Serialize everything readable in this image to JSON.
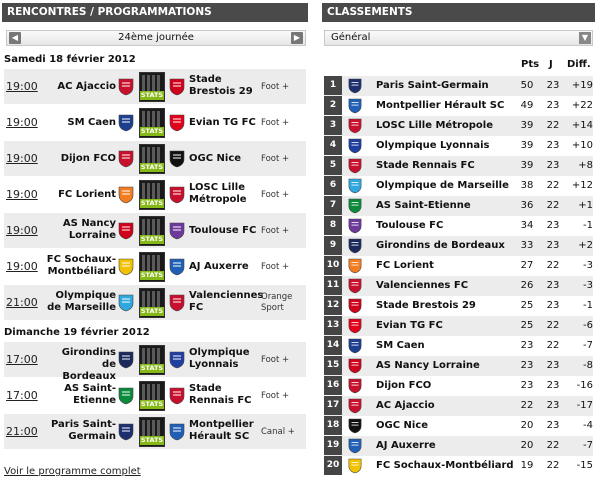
{
  "left": {
    "header": "RENCONTRES / PROGRAMMATIONS",
    "round": "24ème journée",
    "prev_icon": "chevron-left-icon",
    "next_icon": "chevron-right-icon",
    "stats_label": "STATS",
    "more_link": "Voir le programme complet",
    "days": [
      {
        "title": "Samedi 18 février 2012",
        "matches": [
          {
            "time": "19:00",
            "home": "AC Ajaccio",
            "away": "Stade Brestois 29",
            "tv": "Foot +",
            "home_color": "#c8102e",
            "away_color": "#d0021b"
          },
          {
            "time": "19:00",
            "home": "SM Caen",
            "away": "Evian TG FC",
            "tv": "Foot +",
            "home_color": "#1d3f8f",
            "away_color": "#e2001a"
          },
          {
            "time": "19:00",
            "home": "Dijon FCO",
            "away": "OGC Nice",
            "tv": "Foot +",
            "home_color": "#c8102e",
            "away_color": "#111111"
          },
          {
            "time": "19:00",
            "home": "FC Lorient",
            "away": "LOSC Lille Métropole",
            "tv": "Foot +",
            "home_color": "#f47c20",
            "away_color": "#c8102e"
          },
          {
            "time": "19:00",
            "home": "AS Nancy Lorraine",
            "away": "Toulouse FC",
            "tv": "Foot +",
            "home_color": "#d0021b",
            "away_color": "#6d3a9c"
          },
          {
            "time": "19:00",
            "home": "FC Sochaux-Montbéliard",
            "away": "AJ Auxerre",
            "tv": "Foot +",
            "home_color": "#f2c200",
            "away_color": "#1f5fb5"
          },
          {
            "time": "21:00",
            "home": "Olympique de Marseille",
            "away": "Valenciennes FC",
            "tv": "Orange Sport",
            "home_color": "#2fa8e0",
            "away_color": "#c8102e"
          }
        ]
      },
      {
        "title": "Dimanche 19 février 2012",
        "matches": [
          {
            "time": "17:00",
            "home": "Girondins de Bordeaux",
            "away": "Olympique Lyonnais",
            "tv": "Foot +",
            "home_color": "#1a2a5c",
            "away_color": "#1f3fa0"
          },
          {
            "time": "17:00",
            "home": "AS Saint-Etienne",
            "away": "Stade Rennais FC",
            "tv": "Foot +",
            "home_color": "#0a8a3a",
            "away_color": "#c8102e"
          },
          {
            "time": "21:00",
            "home": "Paris Saint-Germain",
            "away": "Montpellier Hérault SC",
            "tv": "Canal +",
            "home_color": "#1d2f6f",
            "away_color": "#1f5fb5"
          }
        ]
      }
    ]
  },
  "right": {
    "header": "CLASSEMENTS",
    "select_value": "Général",
    "select_icon": "chevron-down-icon",
    "columns": {
      "pts": "Pts",
      "j": "J",
      "diff": "Diff."
    },
    "standings": [
      {
        "rank": "1",
        "team": "Paris Saint-Germain",
        "pts": "50",
        "j": "23",
        "diff": "+19",
        "color": "#1d2f6f"
      },
      {
        "rank": "2",
        "team": "Montpellier Hérault SC",
        "pts": "49",
        "j": "23",
        "diff": "+22",
        "color": "#1f5fb5"
      },
      {
        "rank": "3",
        "team": "LOSC Lille Métropole",
        "pts": "39",
        "j": "22",
        "diff": "+14",
        "color": "#c8102e"
      },
      {
        "rank": "4",
        "team": "Olympique Lyonnais",
        "pts": "39",
        "j": "23",
        "diff": "+10",
        "color": "#1f3fa0"
      },
      {
        "rank": "5",
        "team": "Stade Rennais FC",
        "pts": "39",
        "j": "23",
        "diff": "+8",
        "color": "#c8102e"
      },
      {
        "rank": "6",
        "team": "Olympique de Marseille",
        "pts": "38",
        "j": "22",
        "diff": "+12",
        "color": "#2fa8e0"
      },
      {
        "rank": "7",
        "team": "AS Saint-Etienne",
        "pts": "36",
        "j": "22",
        "diff": "+1",
        "color": "#0a8a3a"
      },
      {
        "rank": "8",
        "team": "Toulouse FC",
        "pts": "34",
        "j": "23",
        "diff": "-1",
        "color": "#6d3a9c"
      },
      {
        "rank": "9",
        "team": "Girondins de Bordeaux",
        "pts": "33",
        "j": "23",
        "diff": "+2",
        "color": "#1a2a5c"
      },
      {
        "rank": "10",
        "team": "FC Lorient",
        "pts": "27",
        "j": "22",
        "diff": "-3",
        "color": "#f47c20"
      },
      {
        "rank": "11",
        "team": "Valenciennes FC",
        "pts": "26",
        "j": "23",
        "diff": "-3",
        "color": "#c8102e"
      },
      {
        "rank": "12",
        "team": "Stade Brestois 29",
        "pts": "25",
        "j": "23",
        "diff": "-1",
        "color": "#d0021b"
      },
      {
        "rank": "13",
        "team": "Evian TG FC",
        "pts": "25",
        "j": "22",
        "diff": "-6",
        "color": "#e2001a"
      },
      {
        "rank": "14",
        "team": "SM Caen",
        "pts": "23",
        "j": "22",
        "diff": "-7",
        "color": "#1d3f8f"
      },
      {
        "rank": "15",
        "team": "AS Nancy Lorraine",
        "pts": "23",
        "j": "23",
        "diff": "-8",
        "color": "#d0021b"
      },
      {
        "rank": "16",
        "team": "Dijon FCO",
        "pts": "23",
        "j": "23",
        "diff": "-16",
        "color": "#c8102e"
      },
      {
        "rank": "17",
        "team": "AC Ajaccio",
        "pts": "22",
        "j": "23",
        "diff": "-17",
        "color": "#c8102e"
      },
      {
        "rank": "18",
        "team": "OGC Nice",
        "pts": "20",
        "j": "23",
        "diff": "-4",
        "color": "#111111"
      },
      {
        "rank": "19",
        "team": "AJ Auxerre",
        "pts": "20",
        "j": "22",
        "diff": "-7",
        "color": "#1f5fb5"
      },
      {
        "rank": "20",
        "team": "FC Sochaux-Montbéliard",
        "pts": "19",
        "j": "22",
        "diff": "-15",
        "color": "#f2c200"
      }
    ]
  }
}
